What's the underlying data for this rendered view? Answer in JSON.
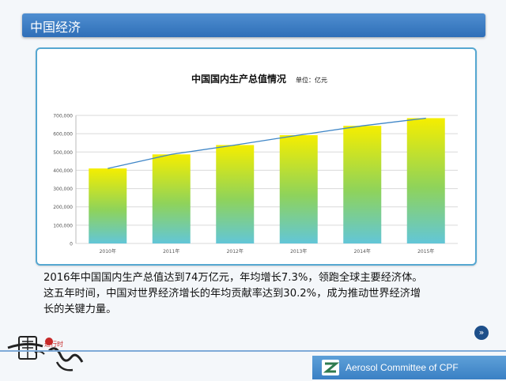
{
  "header": {
    "title": "中国经济"
  },
  "chart_data": {
    "type": "bar",
    "title": "中国国内生产总值情况",
    "subtitle": "单位：亿元",
    "categories": [
      "2010年",
      "2011年",
      "2012年",
      "2013年",
      "2014年",
      "2015年"
    ],
    "values": [
      410000,
      487000,
      538000,
      592000,
      643000,
      685000
    ],
    "trend_line": [
      410000,
      487000,
      538000,
      592000,
      643000,
      685000
    ],
    "ylim": [
      0,
      700000
    ],
    "yticks": [
      "0",
      "100,000",
      "200,000",
      "300,000",
      "400,000",
      "500,000",
      "600,000",
      "700,000"
    ],
    "grid": true,
    "colors": {
      "bar_top": "#f5ee00",
      "bar_mid": "#8fd35a",
      "bar_bottom": "#62c6d8",
      "line": "#3f86c7",
      "grid": "#d9d9d9"
    }
  },
  "description": {
    "line1": "2016年中国国内生产总值达到74万亿元，年均增长7.3%，领跑全球主要经济体。",
    "line2": "这五年时间，中国对世界经济增长的年均贡献率达到30.2%，成为推动世界经济增",
    "line3": "长的关键力量。"
  },
  "nav": {
    "next_label": "»"
  },
  "footer": {
    "org_text": "Aerosol Committee of CPF",
    "logo_small_text": "进行时"
  }
}
